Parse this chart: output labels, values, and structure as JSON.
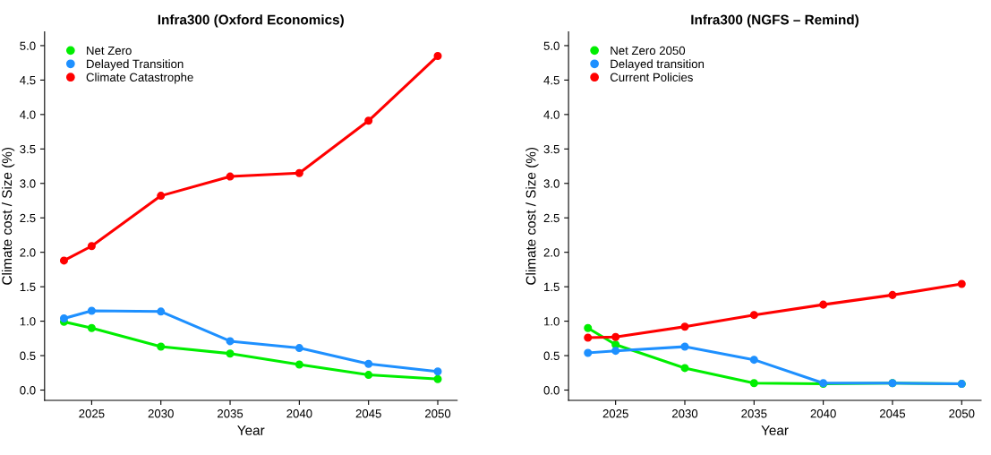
{
  "chart_data": [
    {
      "type": "line",
      "title": "Infra300 (Oxford Economics)",
      "xlabel": "Year",
      "ylabel": "Climate cost / Size (%)",
      "x": [
        2023,
        2025,
        2030,
        2035,
        2040,
        2045,
        2050
      ],
      "series": [
        {
          "name": "Net Zero",
          "color": "#00ee00",
          "values": [
            0.99,
            0.9,
            0.63,
            0.53,
            0.37,
            0.22,
            0.16
          ]
        },
        {
          "name": "Delayed Transition",
          "color": "#1e90ff",
          "values": [
            1.04,
            1.15,
            1.14,
            0.71,
            0.61,
            0.38,
            0.27
          ]
        },
        {
          "name": "Climate Catastrophe",
          "color": "#ff0000",
          "values": [
            1.88,
            2.09,
            2.82,
            3.1,
            3.15,
            3.91,
            4.85
          ]
        }
      ],
      "xlim": [
        2021.6,
        2051.4
      ],
      "ylim": [
        -0.15,
        5.2
      ],
      "xticks": [
        2025,
        2030,
        2035,
        2040,
        2045,
        2050
      ],
      "yticks": [
        {
          "value": 0,
          "label": "0.0"
        },
        {
          "value": 0.5,
          "label": "0.5"
        },
        {
          "value": 1,
          "label": "1.0"
        },
        {
          "value": 1.5,
          "label": "1.5"
        },
        {
          "value": 2,
          "label": "2.0"
        },
        {
          "value": 2.5,
          "label": "2.5"
        },
        {
          "value": 3,
          "label": "3.0"
        },
        {
          "value": 3.5,
          "label": "3.5"
        },
        {
          "value": 4,
          "label": "4.0"
        },
        {
          "value": 4.5,
          "label": "4.5"
        },
        {
          "value": 5,
          "label": "5.0"
        }
      ],
      "grid": false,
      "legend": "top left",
      "marker": "circle",
      "line_style": "solid"
    },
    {
      "type": "line",
      "title": "Infra300 (NGFS – Remind)",
      "xlabel": "Year",
      "ylabel": "Climate cost / Size (%)",
      "x": [
        2023,
        2025,
        2030,
        2035,
        2040,
        2045,
        2050
      ],
      "series": [
        {
          "name": "Net Zero 2050",
          "color": "#00ee00",
          "values": [
            0.9,
            0.66,
            0.32,
            0.1,
            0.09,
            0.1,
            0.09
          ]
        },
        {
          "name": "Delayed transition",
          "color": "#1e90ff",
          "values": [
            0.54,
            0.57,
            0.63,
            0.44,
            0.1,
            0.1,
            0.09
          ]
        },
        {
          "name": "Current Policies",
          "color": "#ff0000",
          "values": [
            0.76,
            0.77,
            0.92,
            1.09,
            1.24,
            1.38,
            1.54
          ]
        }
      ],
      "xlim": [
        2021.6,
        2051.4
      ],
      "ylim": [
        -0.15,
        5.2
      ],
      "xticks": [
        2025,
        2030,
        2035,
        2040,
        2045,
        2050
      ],
      "yticks": [
        {
          "value": 0,
          "label": "0.0"
        },
        {
          "value": 0.5,
          "label": "0.5"
        },
        {
          "value": 1,
          "label": "1.0"
        },
        {
          "value": 1.5,
          "label": "1.5"
        },
        {
          "value": 2,
          "label": "2.0"
        },
        {
          "value": 2.5,
          "label": "2.5"
        },
        {
          "value": 3,
          "label": "3.0"
        },
        {
          "value": 3.5,
          "label": "3.5"
        },
        {
          "value": 4,
          "label": "4.0"
        },
        {
          "value": 4.5,
          "label": "4.5"
        },
        {
          "value": 5,
          "label": "5.0"
        }
      ],
      "grid": false,
      "legend": "top left",
      "marker": "circle",
      "line_style": "solid"
    }
  ]
}
